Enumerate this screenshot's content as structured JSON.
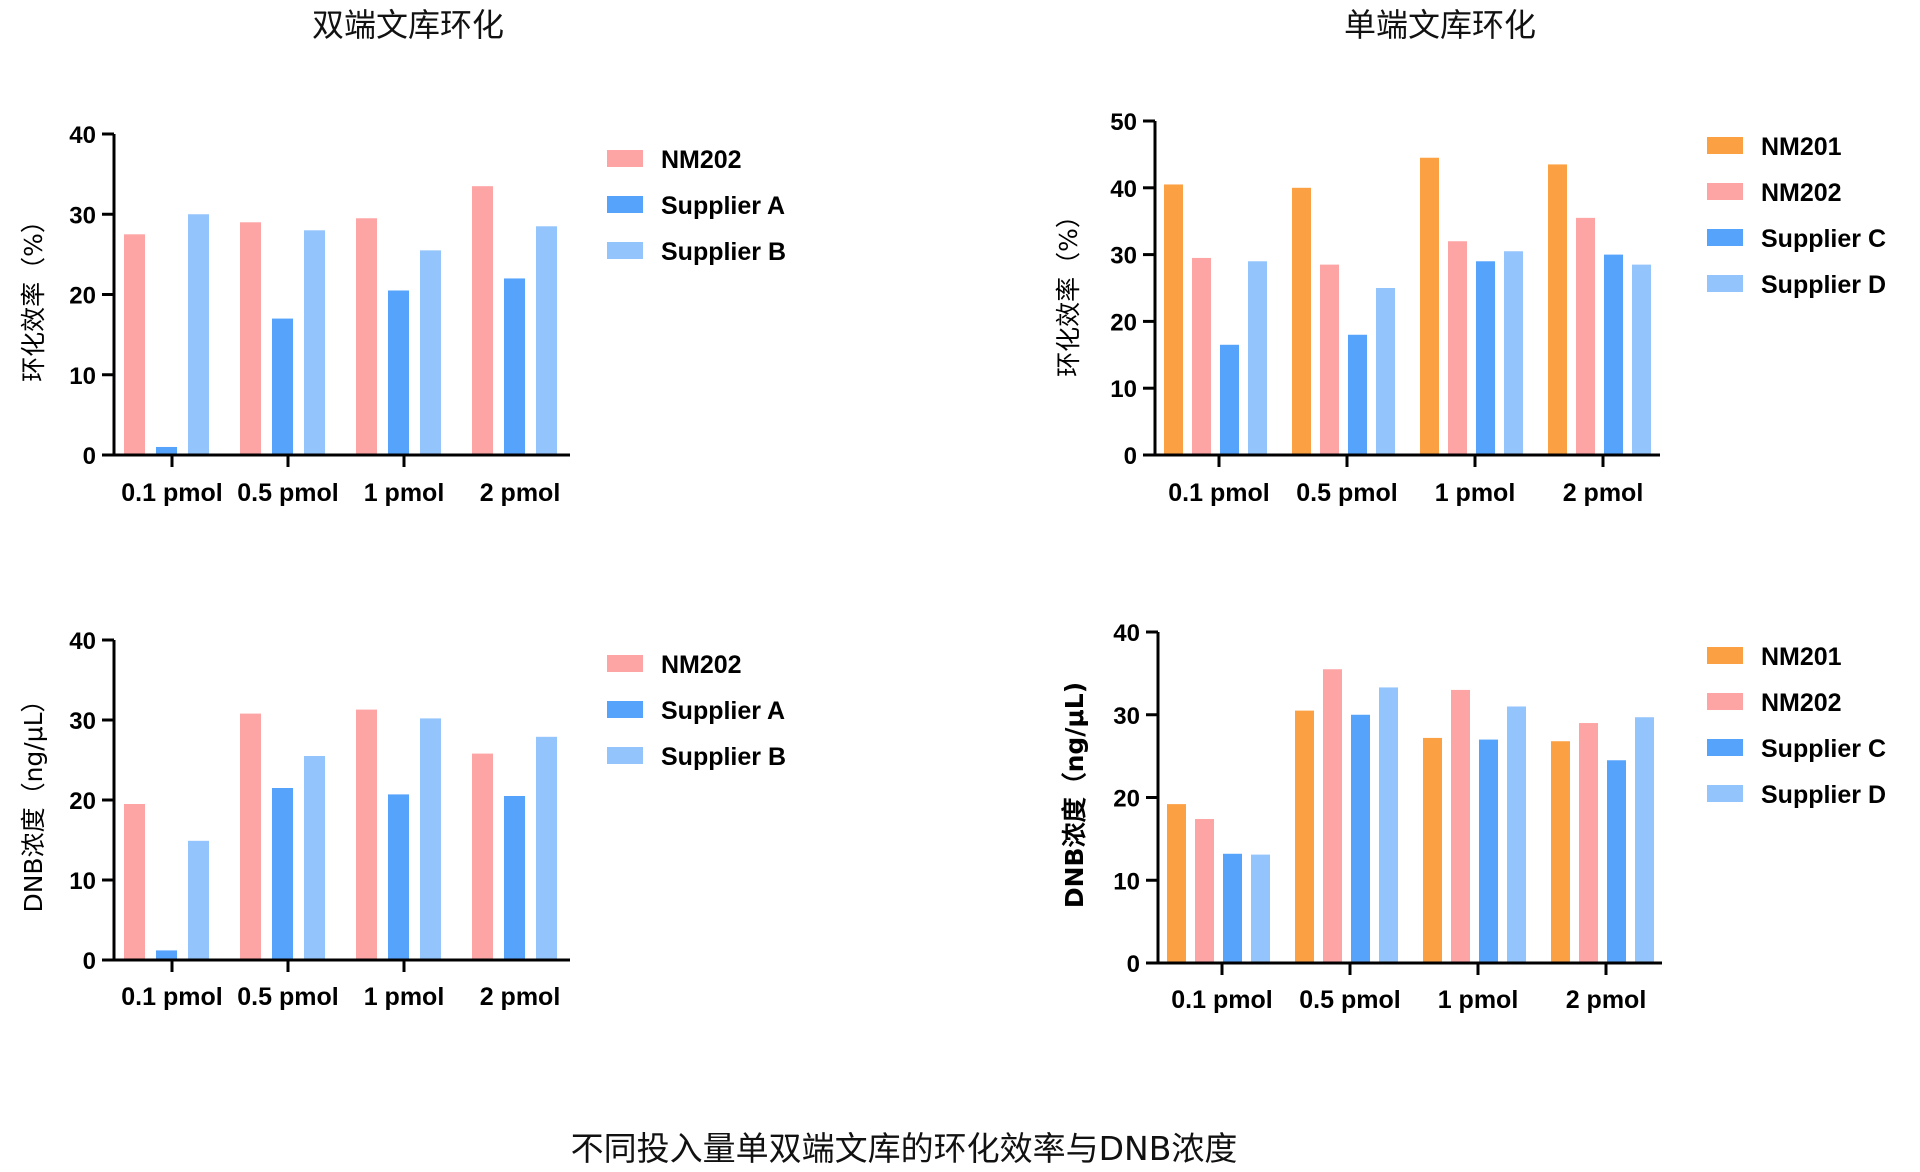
{
  "caption": "不同投入量单双端文库的环化效率与DNB浓度",
  "colors": {
    "NM201": "#fca044",
    "NM202": "#fda5a5",
    "Supplier A": "#56a3fb",
    "Supplier B": "#93c4fb",
    "Supplier C": "#56a3fb",
    "Supplier D": "#93c4fb"
  },
  "chart_data": [
    {
      "type": "bar",
      "title": "双端文库环化",
      "ylabel": "环化效率（%）",
      "xlabel": "",
      "ylim": [
        0,
        40
      ],
      "yticks": [
        0,
        10,
        20,
        30,
        40
      ],
      "categories": [
        "0.1 pmol",
        "0.5 pmol",
        "1 pmol",
        "2 pmol"
      ],
      "legend_position": "right",
      "series": [
        {
          "name": "NM202",
          "values": [
            27.5,
            29,
            29.5,
            33.5
          ]
        },
        {
          "name": "Supplier A",
          "values": [
            1,
            17,
            20.5,
            22
          ]
        },
        {
          "name": "Supplier B",
          "values": [
            30,
            28,
            25.5,
            28.5
          ]
        }
      ]
    },
    {
      "type": "bar",
      "title": "单端文库环化",
      "ylabel": "环化效率（%）",
      "xlabel": "",
      "ylim": [
        0,
        50
      ],
      "yticks": [
        0,
        10,
        20,
        30,
        40,
        50
      ],
      "categories": [
        "0.1 pmol",
        "0.5 pmol",
        "1 pmol",
        "2 pmol"
      ],
      "legend_position": "right",
      "series": [
        {
          "name": "NM201",
          "values": [
            40.5,
            40,
            44.5,
            43.5
          ]
        },
        {
          "name": "NM202",
          "values": [
            29.5,
            28.5,
            32,
            35.5
          ]
        },
        {
          "name": "Supplier C",
          "values": [
            16.5,
            18,
            29,
            30
          ]
        },
        {
          "name": "Supplier D",
          "values": [
            29,
            25,
            30.5,
            28.5
          ]
        }
      ]
    },
    {
      "type": "bar",
      "title": "",
      "ylabel": "DNB浓度（ng/μL）",
      "xlabel": "",
      "ylim": [
        0,
        40
      ],
      "yticks": [
        0,
        10,
        20,
        30,
        40
      ],
      "categories": [
        "0.1 pmol",
        "0.5 pmol",
        "1 pmol",
        "2 pmol"
      ],
      "legend_position": "right",
      "series": [
        {
          "name": "NM202",
          "values": [
            19.5,
            30.8,
            31.3,
            25.8
          ]
        },
        {
          "name": "Supplier A",
          "values": [
            1.2,
            21.5,
            20.7,
            20.5
          ]
        },
        {
          "name": "Supplier B",
          "values": [
            14.9,
            25.5,
            30.2,
            27.9
          ]
        }
      ]
    },
    {
      "type": "bar",
      "title": "",
      "ylabel": "DNB浓度（ng/μL)",
      "xlabel": "",
      "ylim": [
        0,
        40
      ],
      "yticks": [
        0,
        10,
        20,
        30,
        40
      ],
      "categories": [
        "0.1 pmol",
        "0.5 pmol",
        "1 pmol",
        "2 pmol"
      ],
      "legend_position": "right",
      "series": [
        {
          "name": "NM201",
          "values": [
            19.2,
            30.5,
            27.2,
            26.8
          ]
        },
        {
          "name": "NM202",
          "values": [
            17.4,
            35.5,
            33,
            29
          ]
        },
        {
          "name": "Supplier C",
          "values": [
            13.2,
            30,
            27,
            24.5
          ]
        },
        {
          "name": "Supplier D",
          "values": [
            13.1,
            33.3,
            31,
            29.7
          ]
        }
      ]
    }
  ]
}
